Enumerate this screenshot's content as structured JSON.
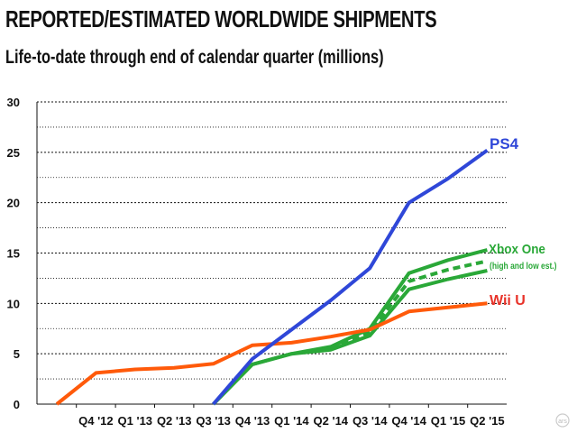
{
  "chart_data": {
    "type": "line",
    "title": "REPORTED/ESTIMATED WORLDWIDE SHIPMENTS",
    "subtitle": "Life-to-date through end of calendar quarter (millions)",
    "categories": [
      "",
      "Q4 '12",
      "Q1 '13",
      "Q2 '13",
      "Q3 '13",
      "Q4 '13",
      "Q1 '14",
      "Q2 '14",
      "Q3 '14",
      "Q4 '14",
      "Q1 '15",
      "Q2 '15"
    ],
    "ylim": [
      0,
      30
    ],
    "yticks": [
      "0",
      "5",
      "10",
      "15",
      "20",
      "25",
      "30"
    ],
    "grid": true,
    "series": [
      {
        "name": "Wii U",
        "color": "#ff5a0a",
        "label_color": "#e8332a",
        "style": "solid",
        "values": [
          0,
          3.1,
          3.45,
          3.6,
          4.0,
          5.85,
          6.1,
          6.7,
          7.4,
          9.2,
          9.6,
          10.0
        ]
      },
      {
        "name": "PS4",
        "color": "#2f47d8",
        "label_color": "#2f47d8",
        "style": "solid",
        "values": [
          null,
          null,
          null,
          null,
          0,
          4.5,
          7.4,
          10.3,
          13.5,
          20.0,
          22.4,
          25.2
        ]
      },
      {
        "name": "Xbox One",
        "color": "#2aa838",
        "label_color": "#2aa838",
        "style": "solid",
        "values": [
          null,
          null,
          null,
          null,
          0,
          3.95,
          5.0,
          5.7,
          7.5,
          13.0,
          14.3,
          15.3
        ]
      },
      {
        "color": "#2aa838",
        "style": "solid",
        "values": [
          null,
          null,
          null,
          null,
          0,
          3.95,
          5.0,
          5.4,
          6.8,
          11.4,
          12.4,
          13.25
        ]
      },
      {
        "color": "#2aa838",
        "style": "dashed",
        "values": [
          null,
          null,
          null,
          null,
          null,
          null,
          null,
          5.55,
          7.15,
          12.2,
          13.35,
          14.2
        ]
      }
    ],
    "annotations": {
      "xbox_note": "(high and low est.)"
    }
  },
  "logo": "ars"
}
